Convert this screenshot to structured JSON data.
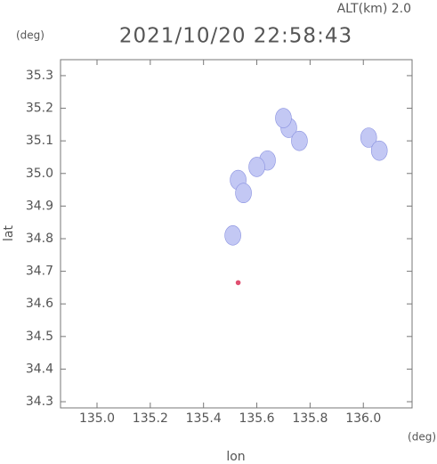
{
  "chart_data": {
    "type": "scatter",
    "title": "2021/10/20 22:58:43",
    "annotation": "ALT(km) 2.0",
    "y_unit": "(deg)",
    "x_unit": "(deg)",
    "xlabel": "lon",
    "ylabel": "lat",
    "x": [
      135.64,
      135.6,
      135.53,
      135.55,
      135.72,
      135.7,
      135.76,
      136.02,
      136.06,
      135.51,
      135.53
    ],
    "values": [
      35.04,
      35.02,
      34.98,
      34.94,
      35.14,
      35.17,
      35.1,
      35.11,
      35.07,
      34.81,
      34.665
    ],
    "point_colors": [
      "#c3c8f4",
      "#c3c8f4",
      "#c3c8f4",
      "#c3c8f4",
      "#c3c8f4",
      "#c3c8f4",
      "#c3c8f4",
      "#c3c8f4",
      "#c3c8f4",
      "#c3c8f4",
      "#e05070"
    ],
    "xlim": [
      134.863,
      136.183
    ],
    "ylim": [
      34.281,
      35.349
    ],
    "xticks": [
      {
        "value": 135,
        "label": "135.0"
      },
      135.2,
      135.4,
      135.6,
      135.8,
      {
        "value": 136,
        "label": "136.0"
      }
    ],
    "yticks": [
      34.3,
      34.4,
      34.5,
      34.6,
      34.7,
      34.8,
      34.9,
      {
        "value": 35,
        "label": "35.0"
      },
      35.1,
      35.2,
      35.3
    ]
  }
}
